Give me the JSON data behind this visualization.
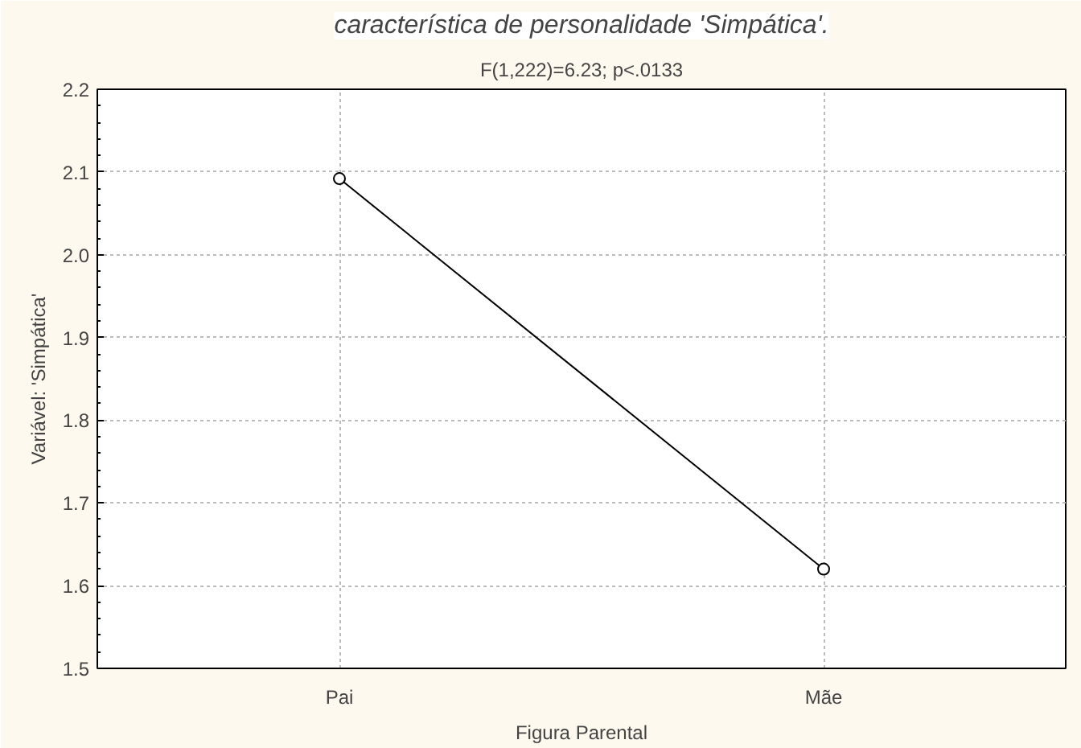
{
  "chart_data": {
    "type": "line",
    "title": "característica de personalidade 'Simpática'.",
    "subtitle": "F(1,222)=6.23; p<.0133",
    "xlabel": "Figura Parental",
    "ylabel": "Variável: 'Simpática'",
    "categories": [
      "Pai",
      "Mãe"
    ],
    "series": [
      {
        "color": "#000000",
        "values": [
          2.092,
          1.62
        ]
      }
    ],
    "ylim": [
      1.5,
      2.2
    ],
    "yticks": [
      {
        "value": 1.5,
        "label": "1.5"
      },
      {
        "value": 1.6,
        "label": "1.6"
      },
      {
        "value": 1.7,
        "label": "1.7"
      },
      {
        "value": 1.8,
        "label": "1.8"
      },
      {
        "value": 1.9,
        "label": "1.9"
      },
      {
        "value": 2.0,
        "label": "2.0"
      },
      {
        "value": 2.1,
        "label": "2.1"
      },
      {
        "value": 2.2,
        "label": "2.2"
      }
    ],
    "grid": true,
    "marker": "circle",
    "line_style": "solid"
  }
}
